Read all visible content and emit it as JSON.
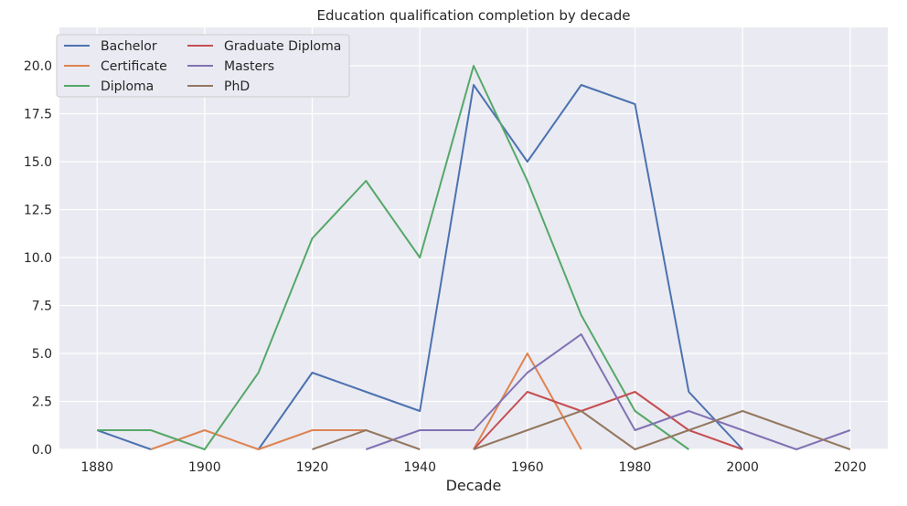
{
  "chart_data": {
    "type": "line",
    "title": "Education qualification completion by decade",
    "xlabel": "Decade",
    "ylabel": "",
    "xlim": [
      1873,
      2027
    ],
    "ylim": [
      0,
      22
    ],
    "x_ticks": [
      1880,
      1900,
      1920,
      1940,
      1960,
      1980,
      2000,
      2020
    ],
    "y_ticks": [
      0.0,
      2.5,
      5.0,
      7.5,
      10.0,
      12.5,
      15.0,
      17.5,
      20.0
    ],
    "y_tick_labels": [
      "0.0",
      "2.5",
      "5.0",
      "7.5",
      "10.0",
      "12.5",
      "15.0",
      "17.5",
      "20.0"
    ],
    "grid": true,
    "legend_position": "top-left",
    "legend_columns": 2,
    "series": [
      {
        "name": "Bachelor",
        "color": "#4c72b0",
        "points": [
          [
            1880,
            1
          ],
          [
            1890,
            0
          ],
          [
            1900,
            null
          ],
          [
            1910,
            0
          ],
          [
            1920,
            4
          ],
          [
            1930,
            3
          ],
          [
            1940,
            2
          ],
          [
            1950,
            19
          ],
          [
            1960,
            15
          ],
          [
            1970,
            19
          ],
          [
            1980,
            18
          ],
          [
            1990,
            3
          ],
          [
            2000,
            0
          ]
        ]
      },
      {
        "name": "Certificate",
        "color": "#dd8452",
        "points": [
          [
            1890,
            0
          ],
          [
            1900,
            1
          ],
          [
            1910,
            0
          ],
          [
            1920,
            1
          ],
          [
            1930,
            1
          ],
          [
            1940,
            null
          ],
          [
            1950,
            0
          ],
          [
            1960,
            5
          ],
          [
            1970,
            0
          ]
        ]
      },
      {
        "name": "Diploma",
        "color": "#55a868",
        "points": [
          [
            1880,
            1
          ],
          [
            1890,
            1
          ],
          [
            1900,
            0
          ],
          [
            1910,
            4
          ],
          [
            1920,
            11
          ],
          [
            1930,
            14
          ],
          [
            1940,
            10
          ],
          [
            1950,
            20
          ],
          [
            1960,
            14
          ],
          [
            1970,
            7
          ],
          [
            1980,
            2
          ],
          [
            1990,
            0
          ]
        ]
      },
      {
        "name": "Graduate Diploma",
        "color": "#c44e52",
        "points": [
          [
            1950,
            0
          ],
          [
            1960,
            3
          ],
          [
            1970,
            2
          ],
          [
            1980,
            3
          ],
          [
            1990,
            1
          ],
          [
            2000,
            0
          ]
        ]
      },
      {
        "name": "Masters",
        "color": "#8172b3",
        "points": [
          [
            1930,
            0
          ],
          [
            1940,
            1
          ],
          [
            1950,
            1
          ],
          [
            1960,
            4
          ],
          [
            1970,
            6
          ],
          [
            1980,
            1
          ],
          [
            1990,
            2
          ],
          [
            2000,
            1
          ],
          [
            2010,
            0
          ],
          [
            2020,
            1
          ]
        ]
      },
      {
        "name": "PhD",
        "color": "#937860",
        "points": [
          [
            1920,
            0
          ],
          [
            1930,
            1
          ],
          [
            1940,
            0
          ],
          [
            1950,
            null
          ],
          [
            1950,
            0
          ],
          [
            1960,
            1
          ],
          [
            1970,
            2
          ],
          [
            1980,
            0
          ],
          [
            1990,
            1
          ],
          [
            2000,
            2
          ],
          [
            2010,
            1
          ],
          [
            2020,
            0
          ]
        ]
      }
    ]
  },
  "colors": {
    "plot_background": "#eaeaf2",
    "grid": "#ffffff",
    "page_background": "#ffffff"
  }
}
